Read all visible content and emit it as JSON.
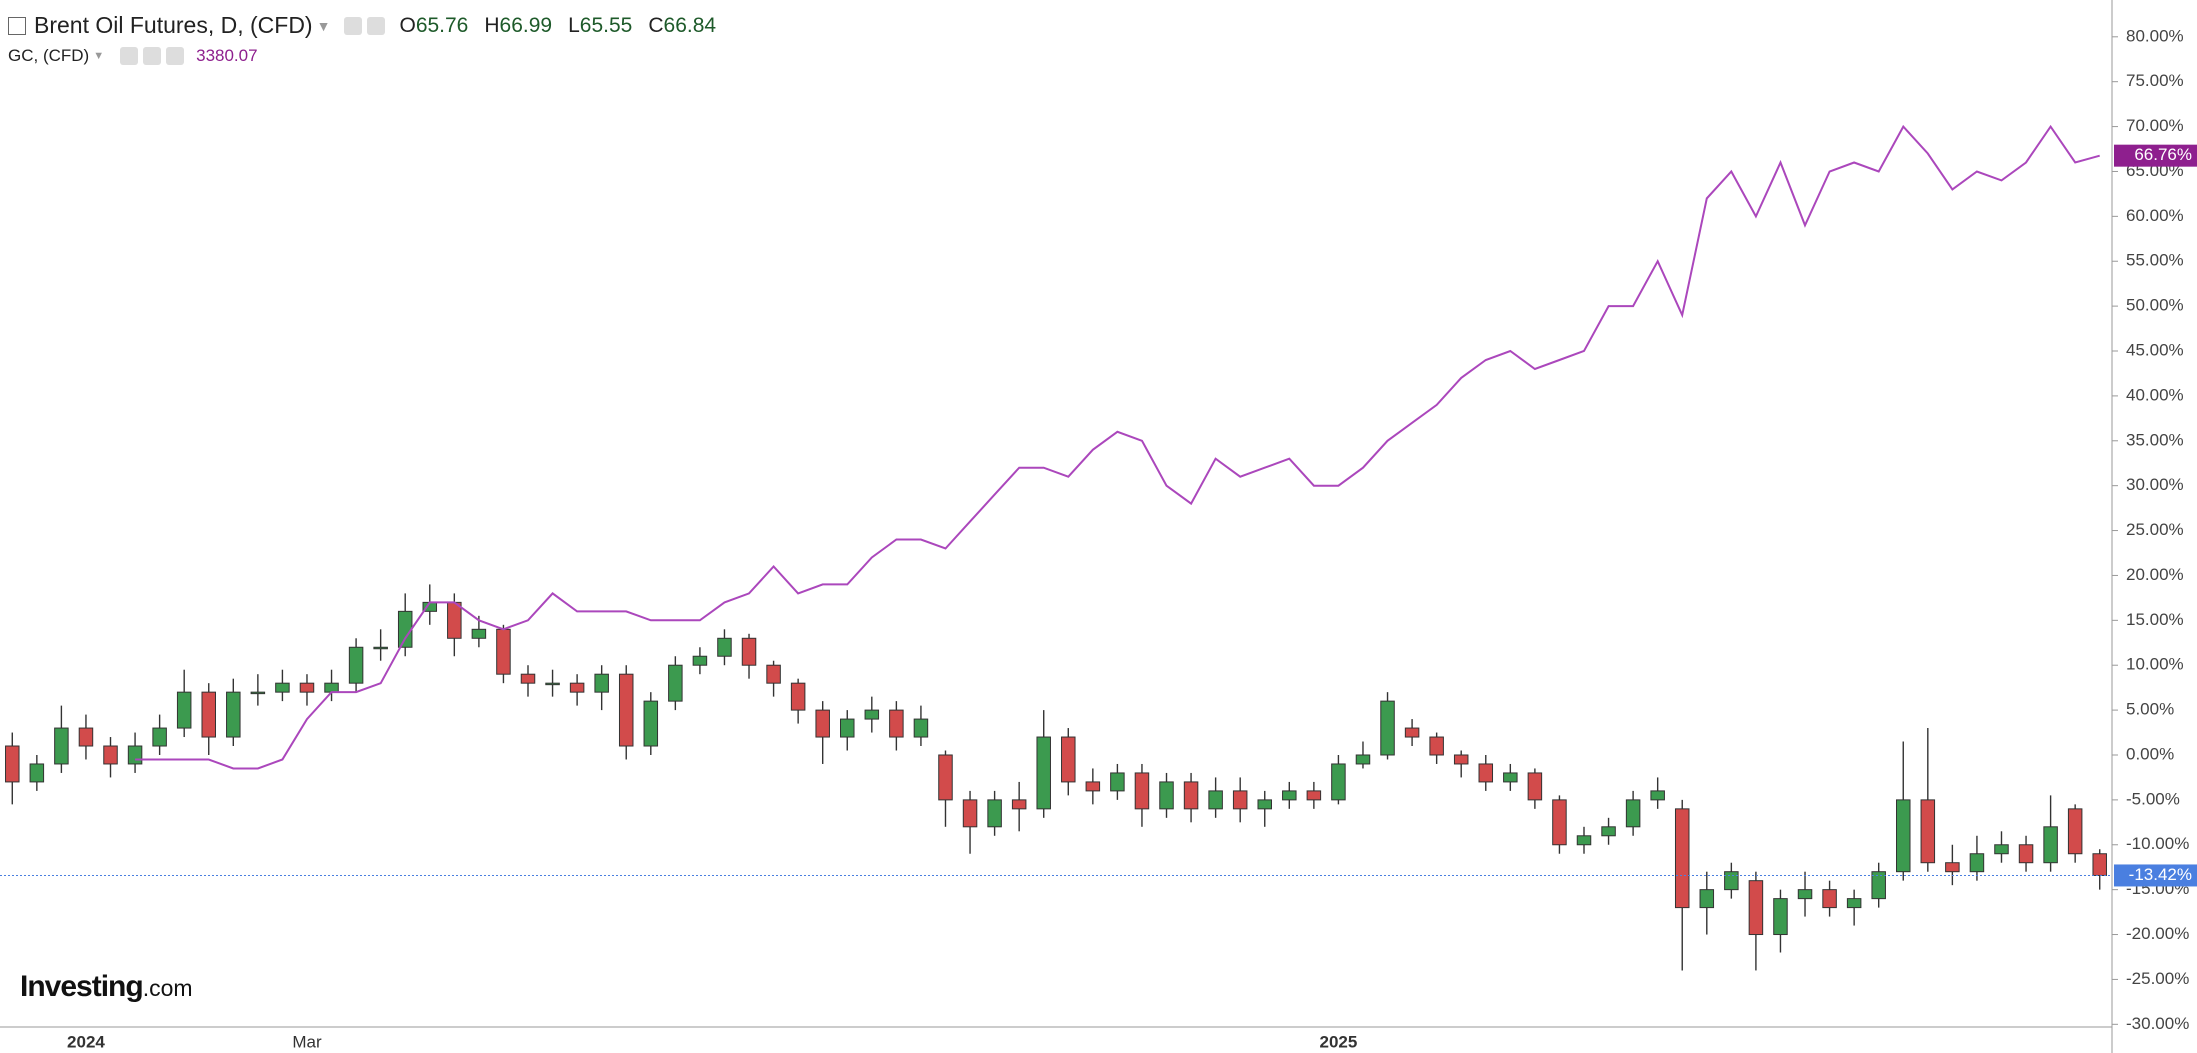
{
  "chart_data": {
    "type": "candlestick",
    "watermark": {
      "brand": "Investing",
      "suffix": ".com"
    },
    "categories": [
      null,
      null,
      null,
      "2024",
      null,
      null,
      null,
      null,
      null,
      null,
      null,
      null,
      "Mar",
      null,
      null,
      null,
      null,
      null,
      null,
      null,
      null,
      null,
      null,
      null,
      null,
      null,
      null,
      null,
      null,
      null,
      null,
      null,
      null,
      null,
      null,
      null,
      null,
      null,
      null,
      null,
      null,
      null,
      null,
      null,
      null,
      null,
      null,
      null,
      null,
      null,
      null,
      null,
      null,
      null,
      "2025",
      null,
      null,
      null,
      null,
      null,
      null,
      null,
      null,
      null,
      null,
      null,
      null,
      null,
      null,
      null,
      null,
      null,
      null,
      null,
      null,
      null,
      null,
      null,
      null,
      null,
      null,
      null,
      null,
      null,
      null,
      null
    ],
    "ylim": [
      -30.3,
      84.1
    ],
    "yticks": [
      {
        "value": 80,
        "label": "80.00%"
      },
      {
        "value": 75,
        "label": "75.00%"
      },
      {
        "value": 70,
        "label": "70.00%"
      },
      {
        "value": 65,
        "label": "65.00%"
      },
      {
        "value": 60,
        "label": "60.00%"
      },
      {
        "value": 55,
        "label": "55.00%"
      },
      {
        "value": 50,
        "label": "50.00%"
      },
      {
        "value": 45,
        "label": "45.00%"
      },
      {
        "value": 40,
        "label": "40.00%"
      },
      {
        "value": 35,
        "label": "35.00%"
      },
      {
        "value": 30,
        "label": "30.00%"
      },
      {
        "value": 25,
        "label": "25.00%"
      },
      {
        "value": 20,
        "label": "20.00%"
      },
      {
        "value": 15,
        "label": "15.00%"
      },
      {
        "value": 10,
        "label": "10.00%"
      },
      {
        "value": 5,
        "label": "5.00%"
      },
      {
        "value": 0,
        "label": "0.00%"
      },
      {
        "value": -5,
        "label": "-5.00%"
      },
      {
        "value": -10,
        "label": "-10.00%"
      },
      {
        "value": -15,
        "label": "-15.00%"
      },
      {
        "value": -20,
        "label": "-20.00%"
      },
      {
        "value": -25,
        "label": "-25.00%"
      },
      {
        "value": -30,
        "label": "-30.00%"
      }
    ],
    "series": [
      {
        "name": "Brent Oil Futures, D, (CFD)",
        "type": "candlestick",
        "up_color": "#3c9a4f",
        "down_color": "#d24b4b",
        "last_color": "#4a7fe0",
        "quote": [
          {
            "label": "O",
            "value": 65.76
          },
          {
            "label": "H",
            "value": 66.99
          },
          {
            "label": "L",
            "value": 65.55
          },
          {
            "label": "C",
            "value": 66.84
          }
        ],
        "open": [
          1,
          -3,
          -1,
          3,
          1,
          -1,
          1,
          3,
          7,
          2,
          7,
          7,
          8,
          7,
          8,
          12,
          12,
          16,
          17,
          13,
          14,
          9,
          8,
          8,
          7,
          9,
          1,
          6,
          10,
          11,
          13,
          10,
          8,
          5,
          2,
          4,
          5,
          2,
          0,
          -5,
          -8,
          -5,
          -6,
          2,
          -3,
          -4,
          -2,
          -6,
          -3,
          -6,
          -4,
          -6,
          -5,
          -4,
          -5,
          -1,
          0,
          3,
          2,
          0,
          -1,
          -3,
          -2,
          -5,
          -10,
          -9,
          -8,
          -5,
          -6,
          -17,
          -15,
          -14,
          -20,
          -16,
          -15,
          -17,
          -16,
          -13,
          -5,
          -12,
          -13,
          -11,
          -10,
          -12,
          -6,
          -11
        ],
        "high": [
          2.5,
          0,
          5.5,
          4.5,
          2,
          2.5,
          4.5,
          9.5,
          8,
          8.5,
          9,
          9.5,
          9,
          9.5,
          13,
          14,
          18,
          19,
          18,
          15.5,
          14.5,
          10,
          9.5,
          9,
          10,
          10,
          7,
          11,
          12,
          14,
          13.5,
          10.5,
          8.5,
          6,
          5,
          6.5,
          6,
          5.5,
          0.5,
          -4,
          -4,
          -3,
          5,
          3,
          -1.5,
          -1,
          -1,
          -2,
          -2,
          -2.5,
          -2.5,
          -4,
          -3,
          -3,
          0,
          1.5,
          7,
          4,
          2.5,
          0.5,
          0,
          -1,
          -1.5,
          -4.5,
          -8,
          -7,
          -4,
          -2.5,
          -5,
          -13,
          -12,
          -13,
          -15,
          -13,
          -14,
          -15,
          -12,
          1.5,
          3,
          -10,
          -9,
          -8.5,
          -9,
          -4.5,
          -5.5,
          -10.5
        ],
        "low": [
          -5.5,
          -4,
          -2,
          -0.5,
          -2.5,
          -2,
          0,
          2,
          0,
          1,
          5.5,
          6,
          5.5,
          6,
          7,
          10.5,
          11,
          14.5,
          11,
          12,
          8,
          6.5,
          6.5,
          5.5,
          5,
          -0.5,
          0,
          5,
          9,
          10,
          8.5,
          6.5,
          3.5,
          -1,
          0.5,
          2.5,
          0.5,
          1,
          -8,
          -11,
          -9,
          -8.5,
          -7,
          -4.5,
          -5.5,
          -5,
          -8,
          -7,
          -7.5,
          -7,
          -7.5,
          -8,
          -6,
          -6,
          -5.5,
          -1.5,
          -0.5,
          1,
          -1,
          -2.5,
          -4,
          -4,
          -6,
          -11,
          -11,
          -10,
          -9,
          -6,
          -24,
          -20,
          -16,
          -24,
          -22,
          -18,
          -18,
          -19,
          -17,
          -14,
          -13,
          -14.5,
          -14,
          -12,
          -13,
          -13,
          -12,
          -15
        ],
        "close": [
          -3,
          -1,
          3,
          1,
          -1,
          1,
          3,
          7,
          2,
          7,
          7,
          8,
          7,
          8,
          12,
          12,
          16,
          17,
          13,
          14,
          9,
          8,
          8,
          7,
          9,
          1,
          6,
          10,
          11,
          13,
          10,
          8,
          5,
          2,
          4,
          5,
          2,
          4,
          -5,
          -8,
          -5,
          -6,
          2,
          -3,
          -4,
          -2,
          -6,
          -3,
          -6,
          -4,
          -6,
          -5,
          -4,
          -5,
          -1,
          0,
          6,
          2,
          0,
          -1,
          -3,
          -2,
          -5,
          -10,
          -9,
          -8,
          -5,
          -4,
          -17,
          -15,
          -13,
          -20,
          -16,
          -15,
          -17,
          -16,
          -13,
          -5,
          -12,
          -13,
          -11,
          -10,
          -12,
          -8,
          -11,
          -13.42
        ],
        "value_labels": [
          null,
          null,
          null,
          null,
          null,
          null,
          null,
          null,
          null,
          null,
          null,
          null,
          null,
          null,
          null,
          null,
          null,
          null,
          null,
          null,
          null,
          null,
          null,
          null,
          null,
          null,
          null,
          null,
          null,
          null,
          null,
          null,
          null,
          null,
          null,
          null,
          null,
          null,
          null,
          null,
          null,
          null,
          null,
          null,
          null,
          null,
          null,
          null,
          null,
          null,
          null,
          null,
          null,
          null,
          null,
          null,
          null,
          null,
          null,
          null,
          null,
          null,
          null,
          null,
          null,
          null,
          null,
          null,
          null,
          null,
          null,
          null,
          null,
          null,
          null,
          null,
          null,
          null,
          null,
          null,
          null,
          null,
          null,
          null,
          null,
          "-13.42%"
        ]
      },
      {
        "name": "GC, (CFD)",
        "type": "line",
        "color": "#ab47bc",
        "label_color": "#8e1f8e",
        "quote": 3380.07,
        "values": [
          null,
          null,
          null,
          null,
          null,
          -0.5,
          -0.5,
          -0.5,
          -0.5,
          -1.5,
          -1.5,
          -0.5,
          4,
          7,
          7,
          8,
          13,
          17,
          17,
          15,
          14,
          15,
          18,
          16,
          16,
          16,
          15,
          15,
          15,
          17,
          18,
          21,
          18,
          19,
          19,
          22,
          24,
          24,
          23,
          26,
          29,
          32,
          32,
          31,
          34,
          36,
          35,
          30,
          28,
          33,
          31,
          32,
          33,
          30,
          30,
          32,
          35,
          37,
          39,
          42,
          44,
          45,
          43,
          44,
          45,
          50,
          50,
          55,
          49,
          62,
          65,
          60,
          66,
          59,
          65,
          66,
          65,
          70,
          67,
          63,
          65,
          64,
          66,
          70,
          66,
          66.76
        ],
        "value_labels": [
          null,
          null,
          null,
          null,
          null,
          null,
          null,
          null,
          null,
          null,
          null,
          null,
          null,
          null,
          null,
          null,
          null,
          null,
          null,
          null,
          null,
          null,
          null,
          null,
          null,
          null,
          null,
          null,
          null,
          null,
          null,
          null,
          null,
          null,
          null,
          null,
          null,
          null,
          null,
          null,
          null,
          null,
          null,
          null,
          null,
          null,
          null,
          null,
          null,
          null,
          null,
          null,
          null,
          null,
          null,
          null,
          null,
          null,
          null,
          null,
          null,
          null,
          null,
          null,
          null,
          null,
          null,
          null,
          null,
          null,
          null,
          null,
          null,
          null,
          null,
          null,
          null,
          null,
          null,
          null,
          null,
          null,
          null,
          null,
          null,
          "66.76%"
        ]
      }
    ]
  }
}
